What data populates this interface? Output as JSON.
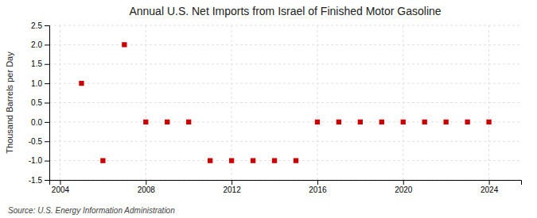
{
  "chart_data": {
    "type": "scatter",
    "title": "Annual U.S. Net Imports from Israel of Finished Motor Gasoline",
    "ylabel": "Thousand Barrels per Day",
    "source": "Source: U.S. Energy Information Administration",
    "x": [
      2005,
      2006,
      2007,
      2008,
      2009,
      2010,
      2011,
      2012,
      2013,
      2014,
      2015,
      2016,
      2017,
      2018,
      2019,
      2020,
      2021,
      2022,
      2023,
      2024
    ],
    "values": [
      1.0,
      -1.0,
      2.0,
      0.0,
      0.0,
      0.0,
      -1.0,
      -1.0,
      -1.0,
      -1.0,
      -1.0,
      0.0,
      0.0,
      0.0,
      0.0,
      0.0,
      0.0,
      0.0,
      0.0,
      0.0
    ],
    "color": "#cc0000",
    "marker": "square",
    "xlim": [
      2003.5,
      2025.5
    ],
    "xticks": [
      2004,
      2008,
      2012,
      2016,
      2020,
      2024
    ],
    "ylim": [
      -1.5,
      2.5
    ],
    "yticks": [
      -1.5,
      {
        "value": -1.0,
        "label": "-1.0"
      },
      -0.5,
      {
        "value": 0.0,
        "label": "0.0"
      },
      0.5,
      {
        "value": 1.0,
        "label": "1.0"
      },
      1.5,
      {
        "value": 2.0,
        "label": "2.0"
      },
      2.5
    ],
    "grid": true
  }
}
